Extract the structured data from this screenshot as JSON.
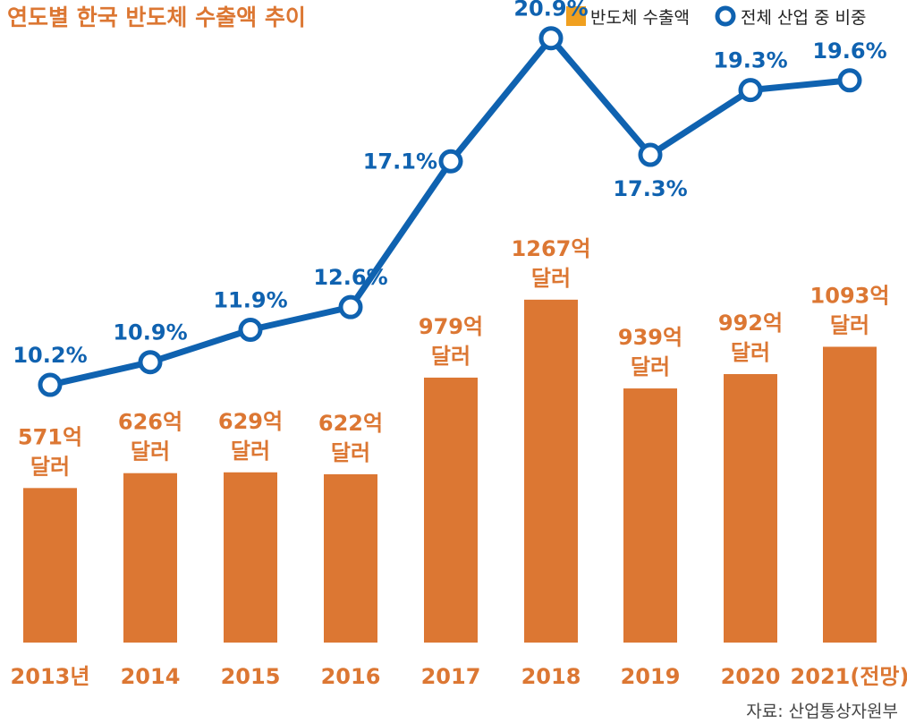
{
  "chart_data": {
    "type": "bar",
    "title": "연도별 한국 반도체 수출액 추이",
    "categories": [
      "2013년",
      "2014",
      "2015",
      "2016",
      "2017",
      "2018",
      "2019",
      "2020",
      "2021(전망)"
    ],
    "series": [
      {
        "name": "반도체 수출액",
        "type": "bar",
        "unit": "억 달러",
        "values": [
          571,
          626,
          629,
          622,
          979,
          1267,
          939,
          992,
          1093
        ],
        "labels": [
          "571억",
          "626억",
          "629억",
          "622억",
          "979억",
          "1267억",
          "939억",
          "992억",
          "1093억"
        ],
        "label_suffix": "달러",
        "color": "#DC7733"
      },
      {
        "name": "전체 산업 중 비중",
        "type": "line",
        "unit": "%",
        "values": [
          10.2,
          10.9,
          11.9,
          12.6,
          17.1,
          20.9,
          17.3,
          19.3,
          19.6
        ],
        "labels": [
          "10.2%",
          "10.9%",
          "11.9%",
          "12.6%",
          "17.1%",
          "20.9%",
          "17.3%",
          "19.3%",
          "19.6%"
        ],
        "color": "#0F62B0"
      }
    ],
    "legend": {
      "position": "top-right",
      "items": [
        "반도체 수출액",
        "전체 산업 중 비중"
      ],
      "bar_swatch_color": "#F0A020"
    },
    "source": "자료: 산업통상자원부",
    "colors": {
      "title": "#DC7733",
      "tick": "#DC7733",
      "bar_label": "#DC7733",
      "line_label": "#0F62B0",
      "source": "#444444"
    }
  }
}
